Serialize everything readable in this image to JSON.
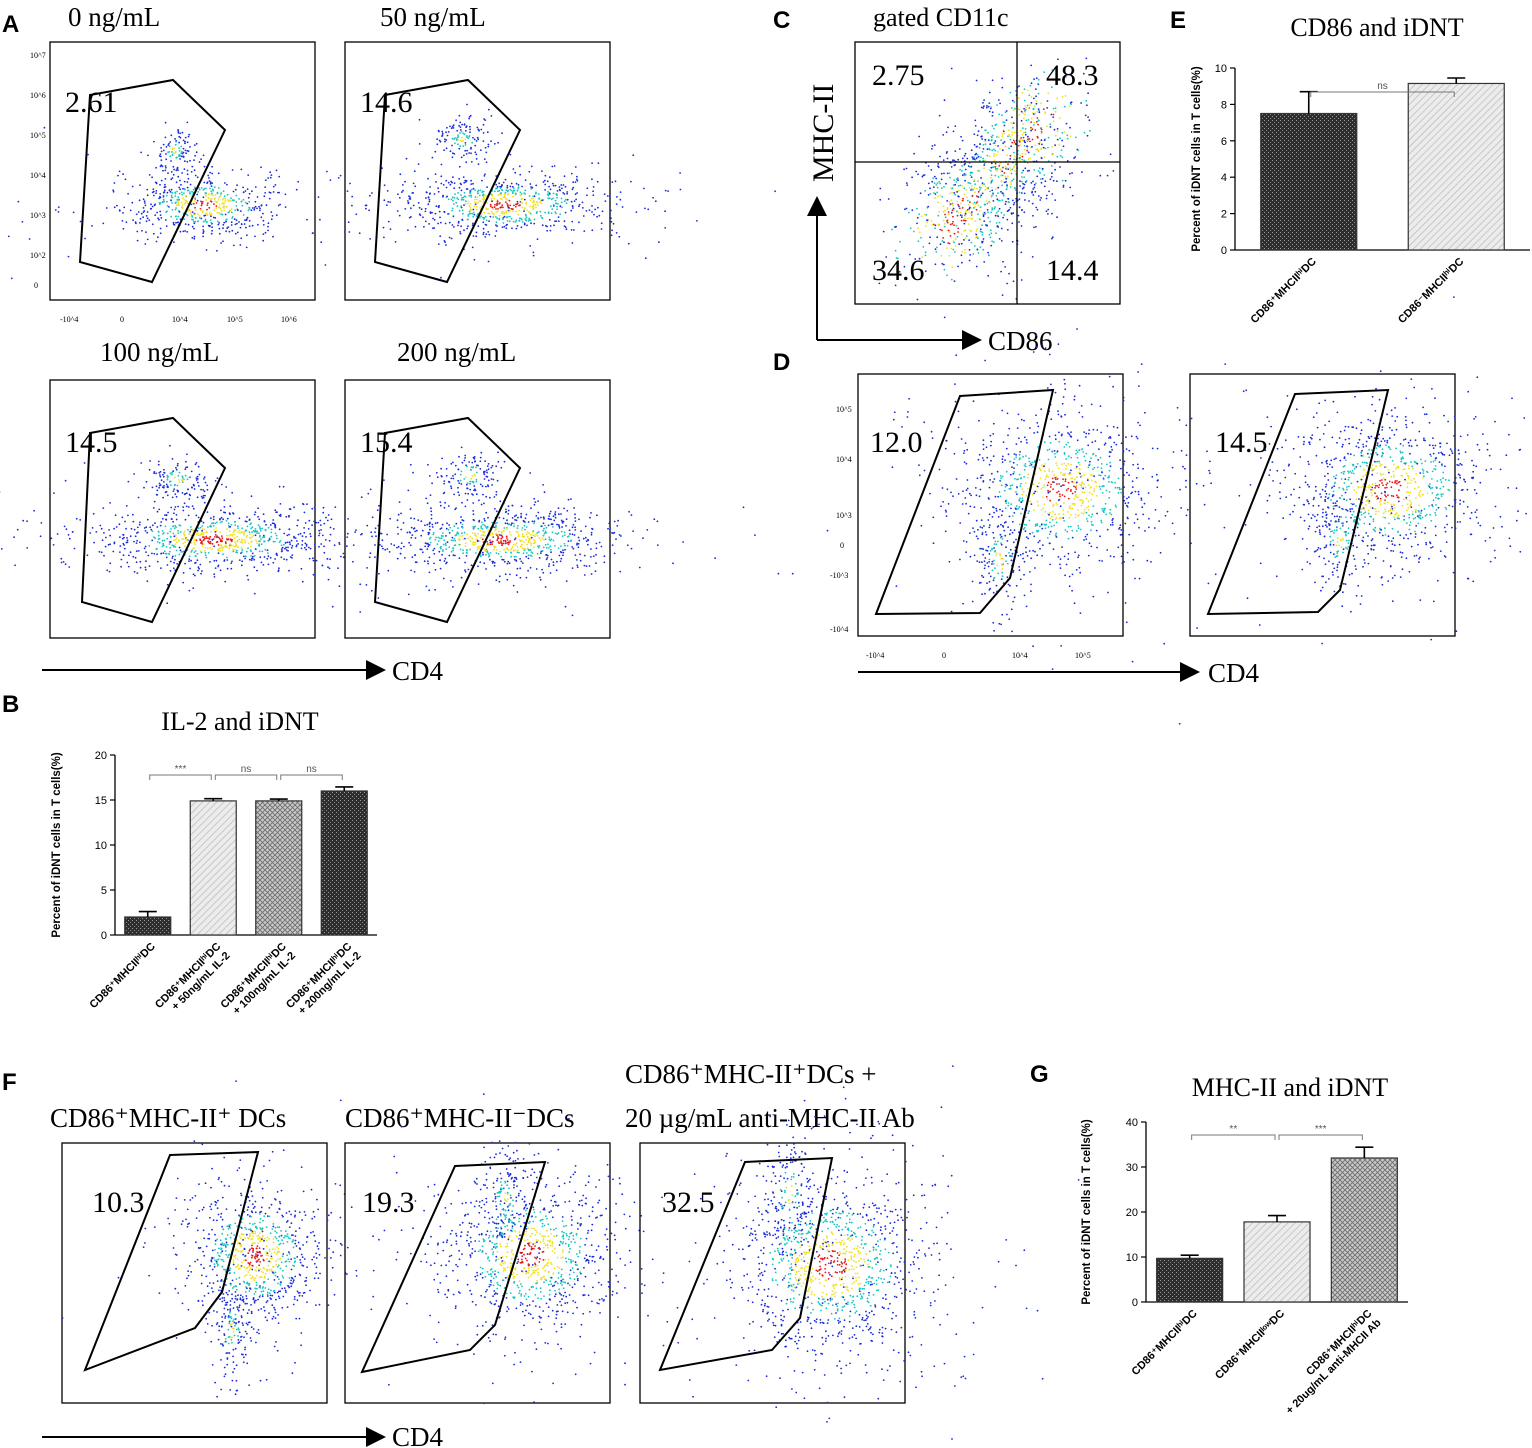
{
  "figure": {
    "panels": {
      "A": {
        "label": "A",
        "x_axis": "CD4",
        "plots": [
          {
            "title": "0 ng/mL",
            "value": "2.61"
          },
          {
            "title": "50 ng/mL",
            "value": "14.6"
          },
          {
            "title": "100 ng/mL",
            "value": "14.5"
          },
          {
            "title": "200 ng/mL",
            "value": "15.4"
          }
        ],
        "ticks": {
          "y": [
            "10^7",
            "10^6",
            "10^5",
            "10^4",
            "10^3",
            "10^2",
            "0"
          ],
          "x": [
            "-10^4",
            "0",
            "10^4",
            "10^5",
            "10^6"
          ]
        }
      },
      "C": {
        "label": "C",
        "title": "gated CD11c",
        "x_axis": "CD86",
        "y_axis": "MHC-II",
        "quadrants": {
          "top_left": "2.75",
          "top_right": "48.3",
          "bottom_left": "34.6",
          "bottom_right": "14.4"
        }
      },
      "D": {
        "label": "D",
        "x_axis": "CD4",
        "plots": [
          {
            "value": "12.0"
          },
          {
            "value": "14.5"
          }
        ],
        "ticks": {
          "y": [
            "10^5",
            "10^4",
            "10^3",
            "0",
            "-10^3",
            "-10^4"
          ],
          "x": [
            "-10^4",
            "0",
            "10^4",
            "10^5"
          ]
        }
      },
      "F": {
        "label": "F",
        "x_axis": "CD4",
        "plots": [
          {
            "title": "CD86⁺MHC-II⁺ DCs",
            "value": "10.3"
          },
          {
            "title": "CD86⁺MHC-II⁻DCs",
            "value": "19.3"
          },
          {
            "title_line1": "CD86⁺MHC-II⁺DCs +",
            "title_line2": "20 µg/mL anti-MHC-II Ab",
            "value": "32.5"
          }
        ]
      }
    }
  },
  "chart_data": [
    {
      "panel": "B",
      "type": "bar",
      "title": "IL-2 and iDNT",
      "ylabel": "Percent of iDNT cells in T cells(%)",
      "ylim": [
        0,
        20
      ],
      "yticks": [
        "0",
        "5",
        "10",
        "15",
        "20"
      ],
      "categories": [
        [
          "CD86⁺MHCIIʰⁱDC"
        ],
        [
          "CD86⁺MHCIIʰⁱDC",
          "+ 50ng/mL IL-2"
        ],
        [
          "CD86⁺MHCIIʰⁱDC",
          "+ 100ng/mL IL-2"
        ],
        [
          "CD86⁺MHCIIʰⁱDC",
          "+ 200ng/mL IL-2"
        ]
      ],
      "values": [
        2.0,
        14.9,
        14.9,
        16.0
      ],
      "errors": [
        0.6,
        0.25,
        0.2,
        0.45
      ],
      "significance": [
        {
          "from": 0,
          "to": 1,
          "label": "***"
        },
        {
          "from": 1,
          "to": 2,
          "label": "ns"
        },
        {
          "from": 2,
          "to": 3,
          "label": "ns"
        }
      ]
    },
    {
      "panel": "E",
      "type": "bar",
      "title": "CD86 and iDNT",
      "ylabel": "Percent of iDNT cells in T cells(%)",
      "ylim": [
        0,
        10
      ],
      "yticks": [
        "0",
        "2",
        "4",
        "6",
        "8",
        "10"
      ],
      "categories": [
        [
          "CD86⁺MHCIIʰⁱDC"
        ],
        [
          "CD86⁻MHCIIʰⁱDC"
        ]
      ],
      "values": [
        7.5,
        9.15
      ],
      "errors": [
        1.2,
        0.3
      ],
      "significance": [
        {
          "from": 0,
          "to": 1,
          "label": "ns"
        }
      ]
    },
    {
      "panel": "G",
      "type": "bar",
      "title": "MHC-II and iDNT",
      "ylabel": "Percent of iDNT cells in T cells(%)",
      "ylim": [
        0,
        40
      ],
      "yticks": [
        "0",
        "10",
        "20",
        "30",
        "40"
      ],
      "categories": [
        [
          "CD86⁺MHCIIʰⁱDC"
        ],
        [
          "CD86⁺MHCIIˡᵒʷDC"
        ],
        [
          "CD86⁺MHCIIʰⁱDC",
          "+ 20ug/mL anti-MHCII Ab"
        ]
      ],
      "values": [
        9.7,
        17.8,
        32.0
      ],
      "errors": [
        0.7,
        1.4,
        2.4
      ],
      "significance": [
        {
          "from": 0,
          "to": 1,
          "label": "**"
        },
        {
          "from": 1,
          "to": 2,
          "label": "***"
        }
      ]
    }
  ],
  "colors": {
    "dot_low": "#1a2bd8",
    "dot_mid": "#16c7c0",
    "dot_high": "#f2e020",
    "dot_peak": "#e81818",
    "bar_dark": "#3a3a3a",
    "bar_light": "#d8d8d8",
    "bar_mid": "#8f8f8f"
  }
}
